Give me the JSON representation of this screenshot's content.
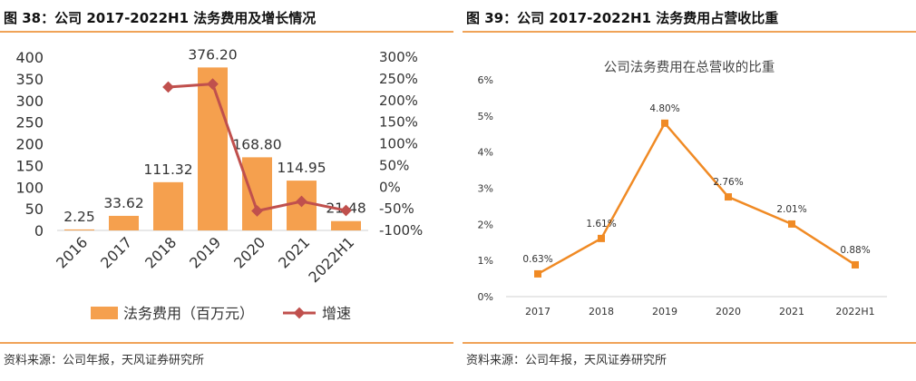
{
  "figures": [
    {
      "title": "图 38：公司 2017-2022H1 法务费用及增长情况",
      "source": "资料来源：公司年报，天风证券研究所"
    },
    {
      "title": "图 39：公司 2017-2022H1 法务费用占营收比重",
      "source": "资料来源：公司年报，天风证券研究所"
    }
  ],
  "colors": {
    "accent": "#f0a358",
    "bar": "#f5a04e",
    "growth_line": "#c0504d",
    "ratio_line": "#f08a24"
  },
  "chart_data": [
    {
      "type": "bar",
      "title": "",
      "categories": [
        "2016",
        "2017",
        "2018",
        "2019",
        "2020",
        "2021",
        "2022H1"
      ],
      "series": [
        {
          "name": "法务费用（百万元）",
          "type": "bar",
          "axis": "left",
          "values": [
            2.25,
            33.62,
            111.32,
            376.2,
            168.8,
            114.95,
            21.48
          ],
          "labels": [
            "2.25",
            "33.62",
            "111.32",
            "376.20",
            "168.80",
            "114.95",
            "21.48"
          ]
        },
        {
          "name": "增速",
          "type": "line",
          "axis": "right",
          "values": [
            null,
            null,
            231,
            238,
            -55,
            -33,
            -54
          ]
        }
      ],
      "y_left": {
        "ylim": [
          0,
          400
        ],
        "ticks": [
          "0",
          "50",
          "100",
          "150",
          "200",
          "250",
          "300",
          "350",
          "400"
        ]
      },
      "y_right": {
        "ylim": [
          -100,
          300
        ],
        "ticks": [
          "-100%",
          "-50%",
          "0%",
          "50%",
          "100%",
          "150%",
          "200%",
          "250%",
          "300%"
        ]
      },
      "legend": "bottom",
      "grid": false
    },
    {
      "type": "line",
      "title": "公司法务费用在总营收的比重",
      "categories": [
        "2017",
        "2018",
        "2019",
        "2020",
        "2021",
        "2022H1"
      ],
      "series": [
        {
          "name": "",
          "values": [
            0.63,
            1.61,
            4.8,
            2.76,
            2.01,
            0.88
          ],
          "labels": [
            "0.63%",
            "1.61%",
            "4.80%",
            "2.76%",
            "2.01%",
            "0.88%"
          ]
        }
      ],
      "y": {
        "ylim": [
          0,
          6
        ],
        "ticks": [
          "0%",
          "1%",
          "2%",
          "3%",
          "4%",
          "5%",
          "6%"
        ]
      },
      "legend": "none",
      "grid": false
    }
  ]
}
